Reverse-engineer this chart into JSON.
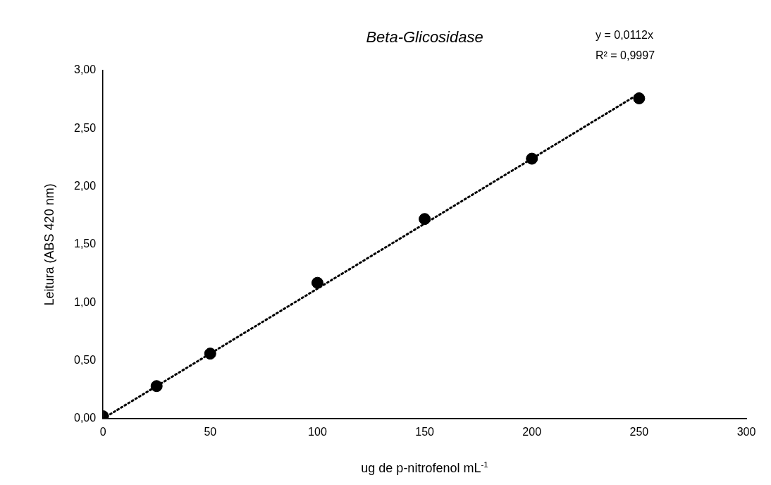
{
  "chart_data": {
    "type": "scatter",
    "title": "Beta-Glicosidase",
    "xlabel": "ug de p-nitrofenol mL$^{-1}$",
    "ylabel": "Leitura (ABS 420 nm)",
    "x": [
      0,
      25,
      50,
      100,
      150,
      200,
      250
    ],
    "series": [
      {
        "color": "#000000",
        "marker": "circle",
        "values": [
          0.02,
          0.28,
          0.56,
          1.17,
          1.72,
          2.24,
          2.76
        ]
      },
      {
        "type": "line",
        "color": "#000000",
        "line_style": "dotted",
        "marker": "none",
        "x": [
          0,
          250
        ],
        "values": [
          0,
          2.8
        ]
      }
    ],
    "xlim": [
      0,
      300
    ],
    "xticks": [
      0,
      50,
      100,
      150,
      200,
      250,
      300
    ],
    "ylim": [
      0,
      3
    ],
    "yticks": [
      {
        "value": 0,
        "label": "0,00"
      },
      {
        "value": 0.5,
        "label": "0,50"
      },
      {
        "value": 1,
        "label": "1,00"
      },
      {
        "value": 1.5,
        "label": "1,50"
      },
      {
        "value": 2,
        "label": "2,00"
      },
      {
        "value": 2.5,
        "label": "2,50"
      },
      {
        "value": 3,
        "label": "3,00"
      }
    ],
    "grid": false,
    "legend": false,
    "annotations": [
      "y = 0,0112x",
      "R² = 0,9997"
    ]
  }
}
